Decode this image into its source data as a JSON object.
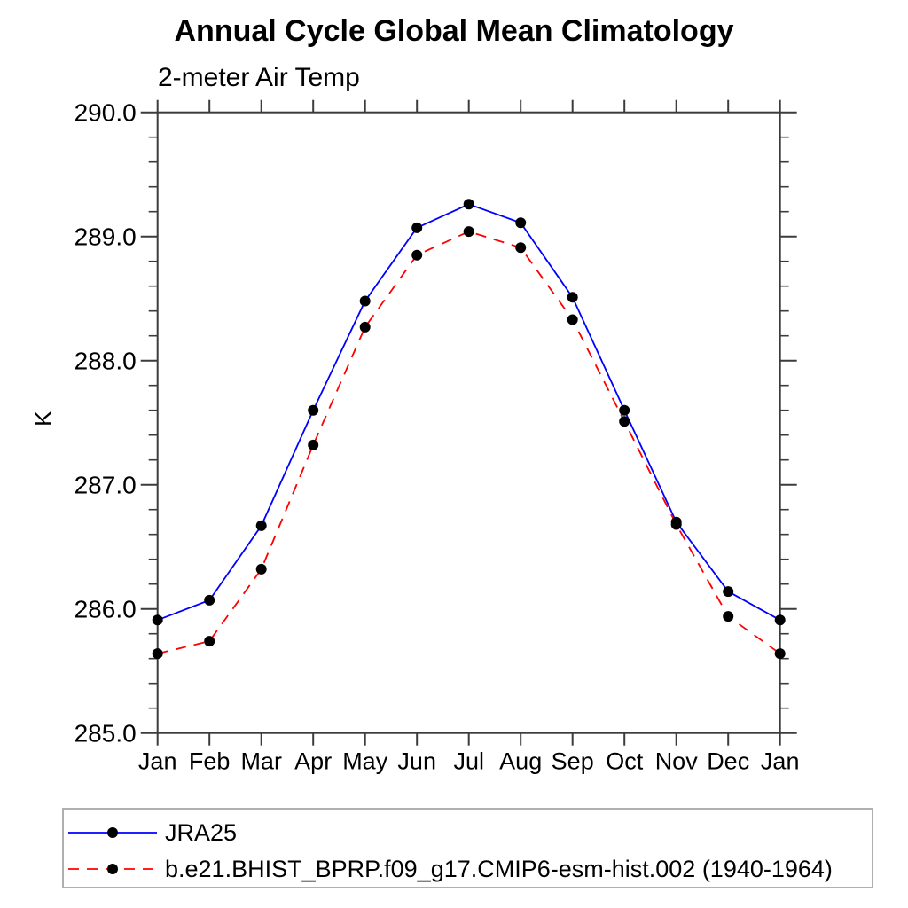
{
  "chart_data": {
    "type": "line",
    "title": "Annual Cycle Global Mean Climatology",
    "subtitle": "2-meter Air Temp",
    "ylabel": "K",
    "xlabel": "",
    "categories": [
      "Jan",
      "Feb",
      "Mar",
      "Apr",
      "May",
      "Jun",
      "Jul",
      "Aug",
      "Sep",
      "Oct",
      "Nov",
      "Dec",
      "Jan"
    ],
    "ylim": [
      285.0,
      290.0
    ],
    "y_major_tick_step": 1.0,
    "y_minor_tick_step": 0.2,
    "y_tick_labels": [
      "285.0",
      "286.0",
      "287.0",
      "288.0",
      "289.0",
      "290.0"
    ],
    "grid": false,
    "legend_position": "bottom-left",
    "marker": {
      "shape": "circle",
      "color": "#000000",
      "radius": 6
    },
    "axis_color": "#3c3c3c",
    "legend_border_color": "#b0b0b0",
    "series": [
      {
        "name": "JRA25",
        "color": "#0000ff",
        "line_style": "solid",
        "dash": "",
        "values": [
          285.91,
          286.07,
          286.67,
          287.6,
          288.48,
          289.07,
          289.26,
          289.11,
          288.51,
          287.6,
          286.7,
          286.14,
          285.91
        ]
      },
      {
        "name": "b.e21.BHIST_BPRP.f09_g17.CMIP6-esm-hist.002 (1940-1964)",
        "color": "#ff0000",
        "line_style": "dashed",
        "dash": "12,9",
        "values": [
          285.64,
          285.74,
          286.32,
          287.32,
          288.27,
          288.85,
          289.04,
          288.91,
          288.33,
          287.51,
          286.68,
          285.94,
          285.64
        ]
      }
    ]
  }
}
